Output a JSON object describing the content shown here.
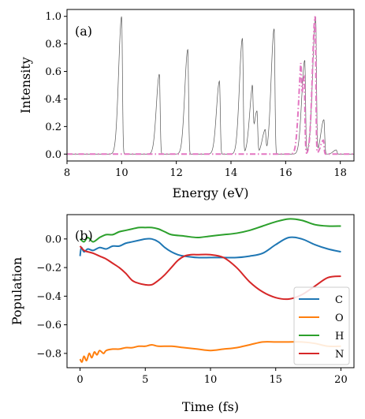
{
  "chart_data": [
    {
      "type": "line",
      "panel_label": "(a)",
      "xlabel": "Energy (eV)",
      "ylabel": "Intensity",
      "xlim": [
        8,
        18.5
      ],
      "ylim": [
        -0.05,
        1.05
      ],
      "xticks": [
        8,
        10,
        12,
        14,
        16,
        18
      ],
      "yticks": [
        0.0,
        0.2,
        0.4,
        0.6,
        0.8,
        1.0
      ],
      "xtick_labels": [
        "8",
        "10",
        "12",
        "14",
        "16",
        "18"
      ],
      "ytick_labels": [
        "0.0",
        "0.2",
        "0.4",
        "0.6",
        "0.8",
        "1.0"
      ],
      "grid": false,
      "series": [
        {
          "style": "solid-thin",
          "color": "#555555",
          "peaks": [
            {
              "x": 10.0,
              "y": 1.0
            },
            {
              "x": 11.38,
              "y": 0.58
            },
            {
              "x": 12.42,
              "y": 0.76
            },
            {
              "x": 13.58,
              "y": 0.53
            },
            {
              "x": 14.42,
              "y": 0.84
            },
            {
              "x": 14.78,
              "y": 0.41
            },
            {
              "x": 14.95,
              "y": 0.31
            },
            {
              "x": 15.25,
              "y": 0.17
            },
            {
              "x": 15.58,
              "y": 0.91
            },
            {
              "x": 16.7,
              "y": 0.68
            },
            {
              "x": 17.1,
              "y": 0.99
            },
            {
              "x": 17.4,
              "y": 0.25
            },
            {
              "x": 17.85,
              "y": 0.03
            }
          ]
        },
        {
          "style": "dash-dot",
          "color": "#e377c2",
          "peaks": [
            {
              "x": 16.55,
              "y": 0.42
            },
            {
              "x": 16.68,
              "y": 0.56
            },
            {
              "x": 17.08,
              "y": 1.0
            },
            {
              "x": 17.38,
              "y": 0.1
            }
          ]
        }
      ]
    },
    {
      "type": "line",
      "panel_label": "(b)",
      "xlabel": "Time (fs)",
      "ylabel": "Population",
      "xlim": [
        -1,
        21
      ],
      "ylim": [
        -0.9,
        0.17
      ],
      "xticks": [
        0,
        5,
        10,
        15,
        20
      ],
      "yticks": [
        0.0,
        -0.2,
        -0.4,
        -0.6,
        -0.8
      ],
      "xtick_labels": [
        "0",
        "5",
        "10",
        "15",
        "20"
      ],
      "ytick_labels": [
        "0.0",
        "−0.2",
        "−0.4",
        "−0.6",
        "−0.8"
      ],
      "grid": false,
      "legend_position": "lower-right",
      "series": [
        {
          "name": "C",
          "color": "#1f77b4",
          "x": [
            0,
            0.1,
            0.3,
            0.6,
            1,
            1.5,
            2,
            2.5,
            3,
            3.5,
            4,
            4.5,
            5,
            5.5,
            6,
            6.5,
            7,
            7.5,
            8,
            9,
            10,
            11,
            12,
            13,
            14,
            15,
            16,
            17,
            18,
            19,
            20
          ],
          "y": [
            -0.12,
            -0.06,
            -0.09,
            -0.07,
            -0.08,
            -0.06,
            -0.07,
            -0.05,
            -0.05,
            -0.03,
            -0.02,
            -0.01,
            0.0,
            0.0,
            -0.02,
            -0.06,
            -0.09,
            -0.11,
            -0.12,
            -0.13,
            -0.13,
            -0.13,
            -0.13,
            -0.12,
            -0.1,
            -0.04,
            0.01,
            0.0,
            -0.04,
            -0.07,
            -0.09
          ]
        },
        {
          "name": "O",
          "color": "#ff7f0e",
          "x": [
            0,
            0.15,
            0.3,
            0.5,
            0.7,
            0.9,
            1.1,
            1.3,
            1.5,
            1.8,
            2,
            2.5,
            3,
            3.5,
            4,
            4.5,
            5,
            5.5,
            6,
            7,
            8,
            9,
            10,
            11,
            12,
            13,
            14,
            15,
            16,
            17,
            18,
            19,
            20
          ],
          "y": [
            -0.84,
            -0.86,
            -0.82,
            -0.85,
            -0.8,
            -0.83,
            -0.79,
            -0.81,
            -0.78,
            -0.8,
            -0.78,
            -0.77,
            -0.77,
            -0.76,
            -0.76,
            -0.75,
            -0.75,
            -0.74,
            -0.75,
            -0.75,
            -0.76,
            -0.77,
            -0.78,
            -0.77,
            -0.76,
            -0.74,
            -0.72,
            -0.72,
            -0.72,
            -0.72,
            -0.73,
            -0.75,
            -0.75
          ]
        },
        {
          "name": "H",
          "color": "#2ca02c",
          "x": [
            0,
            0.3,
            0.6,
            1,
            1.5,
            2,
            2.5,
            3,
            3.5,
            4,
            4.5,
            5,
            5.5,
            6,
            6.5,
            7,
            8,
            9,
            10,
            11,
            12,
            13,
            14,
            15,
            16,
            17,
            18,
            19,
            20
          ],
          "y": [
            0.0,
            -0.02,
            0.01,
            -0.02,
            0.01,
            0.03,
            0.03,
            0.05,
            0.06,
            0.07,
            0.08,
            0.08,
            0.08,
            0.07,
            0.05,
            0.03,
            0.02,
            0.01,
            0.02,
            0.03,
            0.04,
            0.06,
            0.09,
            0.12,
            0.14,
            0.13,
            0.1,
            0.09,
            0.09
          ]
        },
        {
          "name": "N",
          "color": "#d62728",
          "x": [
            0,
            0.3,
            0.6,
            1,
            1.5,
            2,
            2.5,
            3,
            3.5,
            4,
            4.5,
            5,
            5.5,
            6,
            6.5,
            7,
            7.5,
            8,
            8.5,
            9,
            10,
            11,
            12,
            13,
            14,
            15,
            16,
            17,
            18,
            19,
            20
          ],
          "y": [
            -0.05,
            -0.08,
            -0.09,
            -0.1,
            -0.12,
            -0.14,
            -0.17,
            -0.2,
            -0.24,
            -0.29,
            -0.31,
            -0.32,
            -0.32,
            -0.29,
            -0.25,
            -0.2,
            -0.15,
            -0.12,
            -0.11,
            -0.11,
            -0.11,
            -0.13,
            -0.2,
            -0.3,
            -0.37,
            -0.41,
            -0.42,
            -0.39,
            -0.33,
            -0.27,
            -0.26
          ]
        }
      ]
    }
  ]
}
